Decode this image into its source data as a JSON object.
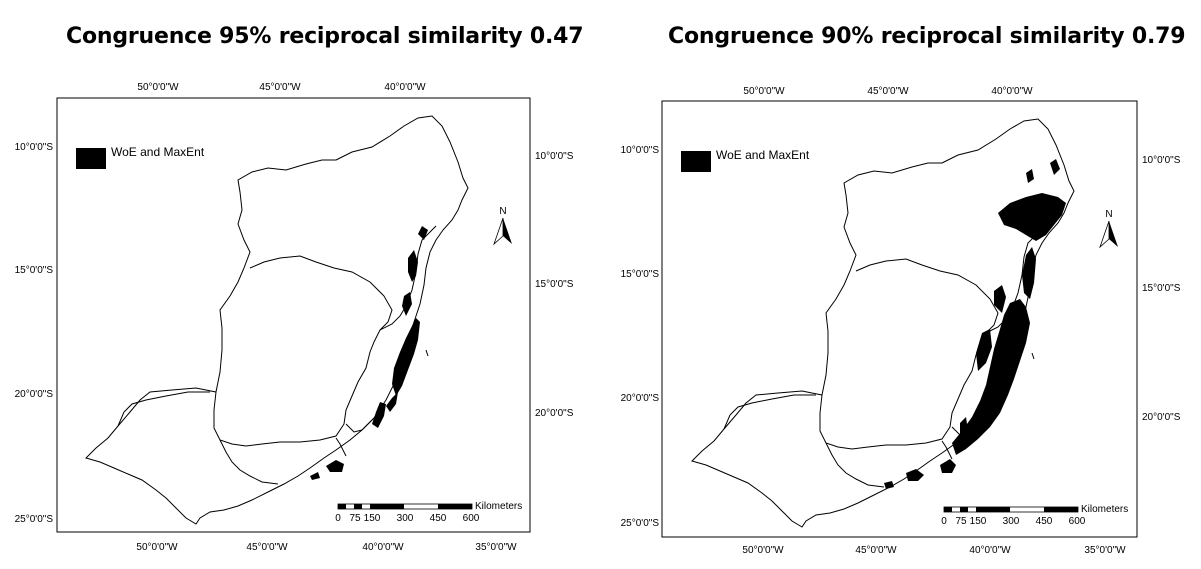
{
  "panels": [
    {
      "title": "Congruence 95% reciprocal similarity 0.47",
      "legend_label": "WoE and MaxEnt",
      "top_lon_labels": [
        "50°0'0\"W",
        "45°0'0\"W",
        "40°0'0\"W"
      ],
      "bottom_lon_labels": [
        "50°0'0\"W",
        "45°0'0\"W",
        "40°0'0\"W",
        "35°0'0\"W"
      ],
      "left_lat_labels": [
        "10°0'0\"S",
        "15°0'0\"S",
        "20°0'0\"S",
        "25°0'0\"S"
      ],
      "right_lat_labels": [
        "10°0'0\"S",
        "15°0'0\"S",
        "20°0'0\"S"
      ],
      "north_label": "N",
      "scale_unit": "Kilometers",
      "scale_ticks": [
        "0",
        "75",
        "150",
        "300",
        "450",
        "600"
      ]
    },
    {
      "title": "Congruence 90% reciprocal similarity 0.79",
      "legend_label": "WoE and MaxEnt",
      "top_lon_labels": [
        "50°0'0\"W",
        "45°0'0\"W",
        "40°0'0\"W"
      ],
      "bottom_lon_labels": [
        "50°0'0\"W",
        "45°0'0\"W",
        "40°0'0\"W",
        "35°0'0\"W"
      ],
      "left_lat_labels": [
        "10°0'0\"S",
        "15°0'0\"S",
        "20°0'0\"S",
        "25°0'0\"S"
      ],
      "right_lat_labels": [
        "10°0'0\"S",
        "15°0'0\"S",
        "20°0'0\"S"
      ],
      "north_label": "N",
      "scale_unit": "Kilometers",
      "scale_ticks": [
        "0",
        "75",
        "150",
        "300",
        "450",
        "600"
      ]
    }
  ]
}
